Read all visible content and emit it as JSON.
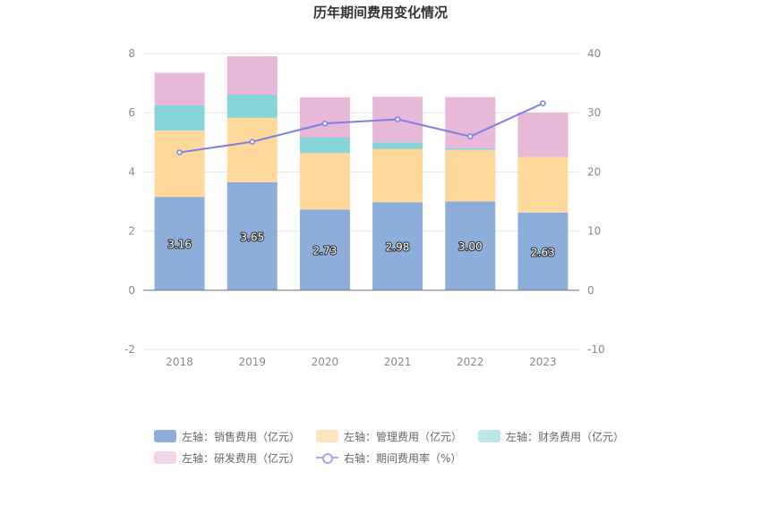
{
  "chart_data": {
    "type": "bar",
    "title": "历年期间费用变化情况",
    "categories": [
      "2018",
      "2019",
      "2020",
      "2021",
      "2022",
      "2023"
    ],
    "stacked": true,
    "left_axis": {
      "ylim": [
        -2,
        8
      ],
      "ticks": [
        "-2",
        "0",
        "2",
        "4",
        "6",
        "8"
      ]
    },
    "right_axis": {
      "ylim": [
        -10,
        40
      ],
      "ticks": [
        "-10",
        "0",
        "10",
        "20",
        "30",
        "40"
      ]
    },
    "series": [
      {
        "name": "左轴：销售费用（亿元）",
        "axis": "left",
        "kind": "bar",
        "color": "#8DAEDB",
        "values": [
          3.16,
          3.65,
          2.73,
          2.98,
          3.0,
          2.63
        ],
        "labels": [
          "3.16",
          "3.65",
          "2.73",
          "2.98",
          "3.00",
          "2.63"
        ]
      },
      {
        "name": "左轴：管理费用（亿元）",
        "axis": "left",
        "kind": "bar",
        "color": "#FFD99B",
        "values": [
          2.24,
          2.18,
          1.91,
          1.8,
          1.75,
          1.88
        ]
      },
      {
        "name": "左轴：财务费用（亿元）",
        "axis": "left",
        "kind": "bar",
        "color": "#86D4D9",
        "values": [
          0.85,
          0.78,
          0.52,
          0.22,
          0.05,
          0.0
        ]
      },
      {
        "name": "左轴：研发费用（亿元）",
        "axis": "left",
        "kind": "bar",
        "color": "#E8B8D9",
        "values": [
          1.1,
          1.3,
          1.36,
          1.54,
          1.73,
          1.5
        ]
      },
      {
        "name": "右轴：期间费用率（%）",
        "axis": "right",
        "kind": "line",
        "color": "#7B7FE8",
        "values": [
          23.3,
          25.1,
          28.2,
          28.9,
          26.0,
          31.6
        ]
      }
    ]
  }
}
